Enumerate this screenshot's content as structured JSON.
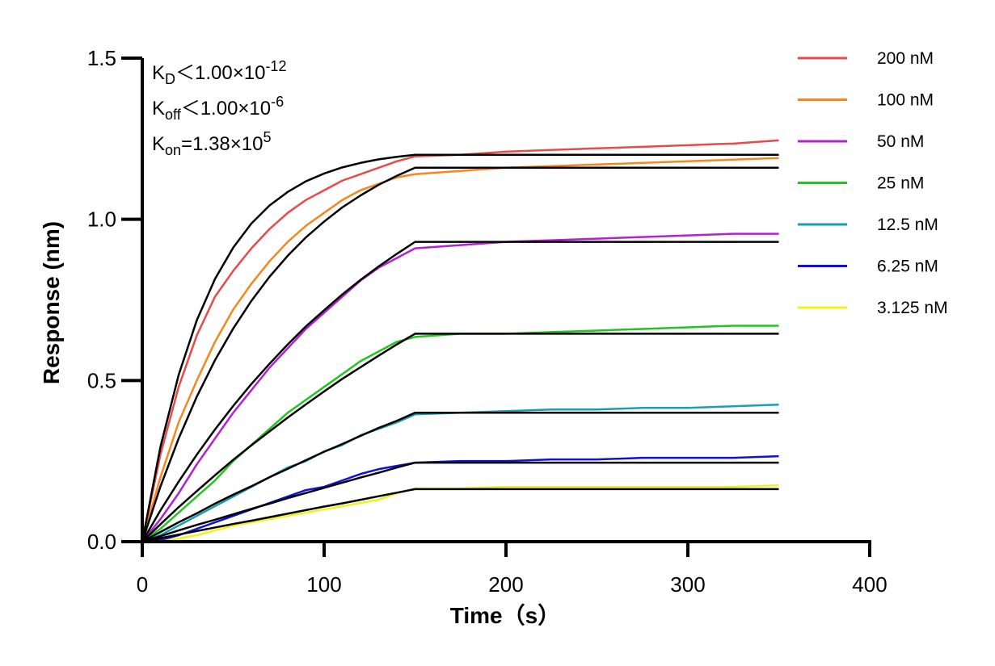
{
  "chart_data": {
    "type": "line",
    "xlabel": "Time（s）",
    "ylabel": "Response (nm)",
    "xlim": [
      0,
      400
    ],
    "ylim": [
      0,
      1.5
    ],
    "xticks": [
      0,
      100,
      200,
      300,
      400
    ],
    "yticks": [
      {
        "value": 0,
        "label": "0.0"
      },
      {
        "value": 0.5,
        "label": "0.5"
      },
      {
        "value": 1,
        "label": "1.0"
      },
      {
        "value": 1.5,
        "label": "1.5"
      }
    ],
    "legend": "right",
    "annotations": [
      {
        "symbol": "K",
        "subscript": "D",
        "text": "＜1.00×10",
        "superscript": "-12"
      },
      {
        "symbol": "K",
        "subscript": "off",
        "text": "＜1.00×10",
        "superscript": "-6"
      },
      {
        "symbol": "K",
        "subscript": "on",
        "text": "=1.38×10",
        "superscript": "5"
      }
    ],
    "x": [
      0,
      10,
      20,
      30,
      40,
      50,
      60,
      70,
      80,
      90,
      100,
      110,
      120,
      130,
      140,
      150,
      175,
      200,
      225,
      250,
      275,
      300,
      325,
      350
    ],
    "series": [
      {
        "name": "200 nM",
        "color": "#e84a4a",
        "values": [
          0,
          0.27,
          0.48,
          0.64,
          0.76,
          0.84,
          0.91,
          0.97,
          1.02,
          1.06,
          1.09,
          1.12,
          1.14,
          1.16,
          1.18,
          1.195,
          1.2,
          1.21,
          1.215,
          1.22,
          1.225,
          1.23,
          1.235,
          1.245
        ]
      },
      {
        "name": "100 nM",
        "color": "#f7871d",
        "values": [
          0,
          0.2,
          0.37,
          0.5,
          0.62,
          0.72,
          0.8,
          0.87,
          0.93,
          0.98,
          1.02,
          1.06,
          1.09,
          1.11,
          1.13,
          1.14,
          1.15,
          1.16,
          1.165,
          1.17,
          1.175,
          1.18,
          1.185,
          1.19
        ]
      },
      {
        "name": "50 nM",
        "color": "#b51fd6",
        "values": [
          0,
          0.07,
          0.15,
          0.24,
          0.32,
          0.4,
          0.47,
          0.54,
          0.6,
          0.66,
          0.71,
          0.76,
          0.81,
          0.85,
          0.88,
          0.91,
          0.92,
          0.93,
          0.935,
          0.94,
          0.945,
          0.95,
          0.955,
          0.955
        ]
      },
      {
        "name": "25 nM",
        "color": "#22c51e",
        "values": [
          0,
          0.04,
          0.09,
          0.14,
          0.19,
          0.25,
          0.3,
          0.35,
          0.4,
          0.44,
          0.48,
          0.52,
          0.56,
          0.59,
          0.62,
          0.635,
          0.645,
          0.645,
          0.65,
          0.655,
          0.66,
          0.665,
          0.67,
          0.67
        ]
      },
      {
        "name": "12.5 nM",
        "color": "#1a9eb5",
        "values": [
          0,
          0.02,
          0.05,
          0.08,
          0.11,
          0.14,
          0.17,
          0.2,
          0.23,
          0.25,
          0.28,
          0.3,
          0.33,
          0.35,
          0.37,
          0.395,
          0.4,
          0.405,
          0.41,
          0.41,
          0.415,
          0.415,
          0.42,
          0.425
        ]
      },
      {
        "name": "6.25 nM",
        "color": "#1010d8",
        "values": [
          0,
          0.005,
          0.02,
          0.04,
          0.06,
          0.08,
          0.1,
          0.12,
          0.14,
          0.16,
          0.17,
          0.19,
          0.21,
          0.225,
          0.235,
          0.245,
          0.25,
          0.25,
          0.255,
          0.255,
          0.26,
          0.26,
          0.26,
          0.265
        ]
      },
      {
        "name": "3.125 nM",
        "color": "#f2f21a",
        "values": [
          0,
          0,
          0.01,
          0.02,
          0.035,
          0.05,
          0.06,
          0.07,
          0.08,
          0.09,
          0.1,
          0.11,
          0.12,
          0.13,
          0.15,
          0.165,
          0.165,
          0.17,
          0.17,
          0.17,
          0.17,
          0.17,
          0.17,
          0.175
        ]
      },
      {
        "color": "#000000",
        "values": [
          0,
          0.294,
          0.517,
          0.687,
          0.815,
          0.912,
          0.987,
          1.043,
          1.085,
          1.118,
          1.142,
          1.161,
          1.175,
          1.186,
          1.194,
          1.2,
          1.2,
          1.2,
          1.2,
          1.2,
          1.2,
          1.2,
          1.2,
          1.2
        ]
      },
      {
        "color": "#000000",
        "values": [
          0,
          0.171,
          0.32,
          0.45,
          0.563,
          0.661,
          0.747,
          0.822,
          0.887,
          0.944,
          0.993,
          1.037,
          1.074,
          1.107,
          1.135,
          1.16,
          1.16,
          1.16,
          1.16,
          1.16,
          1.16,
          1.16,
          1.16,
          1.16
        ]
      },
      {
        "color": "#000000",
        "values": [
          0,
          0.097,
          0.186,
          0.27,
          0.348,
          0.421,
          0.489,
          0.552,
          0.612,
          0.668,
          0.718,
          0.767,
          0.812,
          0.854,
          0.893,
          0.93,
          0.93,
          0.93,
          0.93,
          0.93,
          0.93,
          0.93,
          0.93,
          0.93
        ]
      },
      {
        "color": "#000000",
        "values": [
          0,
          0.054,
          0.107,
          0.157,
          0.206,
          0.254,
          0.299,
          0.342,
          0.385,
          0.426,
          0.466,
          0.505,
          0.541,
          0.577,
          0.612,
          0.645,
          0.645,
          0.645,
          0.645,
          0.645,
          0.645,
          0.645,
          0.645,
          0.645
        ]
      },
      {
        "color": "#000000",
        "values": [
          0,
          0.03,
          0.06,
          0.088,
          0.118,
          0.146,
          0.172,
          0.2,
          0.226,
          0.253,
          0.279,
          0.303,
          0.328,
          0.353,
          0.375,
          0.4,
          0.4,
          0.4,
          0.4,
          0.4,
          0.4,
          0.4,
          0.4,
          0.4
        ]
      },
      {
        "color": "#000000",
        "values": [
          0,
          0.017,
          0.035,
          0.052,
          0.068,
          0.085,
          0.102,
          0.118,
          0.135,
          0.151,
          0.167,
          0.183,
          0.199,
          0.214,
          0.23,
          0.245,
          0.245,
          0.245,
          0.245,
          0.245,
          0.245,
          0.245,
          0.245,
          0.245
        ]
      },
      {
        "color": "#000000",
        "values": [
          0,
          0.011,
          0.022,
          0.033,
          0.044,
          0.055,
          0.065,
          0.076,
          0.087,
          0.098,
          0.109,
          0.119,
          0.13,
          0.141,
          0.152,
          0.163,
          0.163,
          0.163,
          0.163,
          0.163,
          0.163,
          0.163,
          0.163,
          0.163
        ]
      }
    ]
  }
}
